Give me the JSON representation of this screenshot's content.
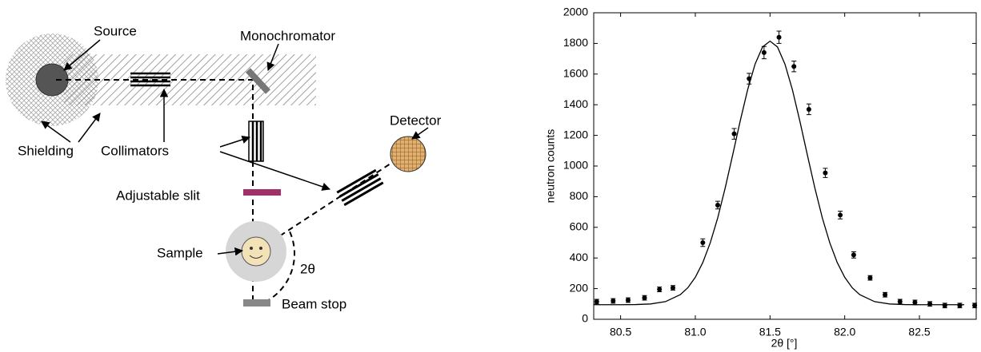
{
  "diagram": {
    "labels": {
      "source": "Source",
      "monochromator": "Monochromator",
      "shielding": "Shielding",
      "collimators": "Collimators",
      "detector": "Detector",
      "slit": "Adjustable slit",
      "sample": "Sample",
      "angle": "2θ",
      "beam_stop": "Beam stop"
    }
  },
  "chart_data": {
    "type": "scatter",
    "x_label": "2θ [°]",
    "y_label": "neutron counts",
    "x": [
      80.34,
      80.45,
      80.55,
      80.66,
      80.76,
      80.85,
      81.05,
      81.15,
      81.26,
      81.36,
      81.46,
      81.56,
      81.66,
      81.76,
      81.87,
      81.97,
      82.06,
      82.17,
      82.27,
      82.37,
      82.47,
      82.57,
      82.67,
      82.77,
      82.87
    ],
    "series": [
      {
        "color": "#000000",
        "values": [
          115,
          120,
          125,
          140,
          195,
          205,
          500,
          745,
          1210,
          1570,
          1740,
          1840,
          1650,
          1370,
          955,
          680,
          420,
          270,
          160,
          115,
          110,
          100,
          90,
          90,
          90
        ],
        "errors": [
          15,
          15,
          15,
          15,
          15,
          15,
          25,
          25,
          35,
          35,
          40,
          40,
          35,
          35,
          30,
          25,
          20,
          15,
          15,
          15,
          15,
          15,
          15,
          15,
          15
        ]
      }
    ],
    "fit": {
      "color": "#000000",
      "x": [
        80.32,
        80.5,
        80.6,
        80.7,
        80.8,
        80.9,
        80.95,
        81.0,
        81.05,
        81.1,
        81.15,
        81.2,
        81.25,
        81.3,
        81.35,
        81.4,
        81.45,
        81.5,
        81.55,
        81.6,
        81.65,
        81.7,
        81.75,
        81.8,
        81.85,
        81.9,
        81.95,
        82.0,
        82.05,
        82.1,
        82.2,
        82.3,
        82.4,
        82.5,
        82.6,
        82.7,
        82.8
      ],
      "values": [
        95,
        95,
        96,
        100,
        115,
        161,
        206,
        274,
        370,
        499,
        662,
        857,
        1072,
        1292,
        1497,
        1665,
        1777,
        1815,
        1777,
        1665,
        1497,
        1292,
        1072,
        857,
        662,
        499,
        370,
        274,
        206,
        161,
        115,
        100,
        96,
        95,
        95,
        95,
        95
      ]
    },
    "xlim": [
      80.32,
      82.88
    ],
    "ylim": [
      0,
      2000
    ],
    "xticks": [
      80.5,
      {
        "value": 81,
        "label": "81.0"
      },
      81.5,
      {
        "value": 82,
        "label": "82.0"
      },
      82.5
    ],
    "yticks": [
      0,
      200,
      400,
      600,
      800,
      1000,
      1200,
      1400,
      1600,
      1800,
      2000
    ]
  }
}
